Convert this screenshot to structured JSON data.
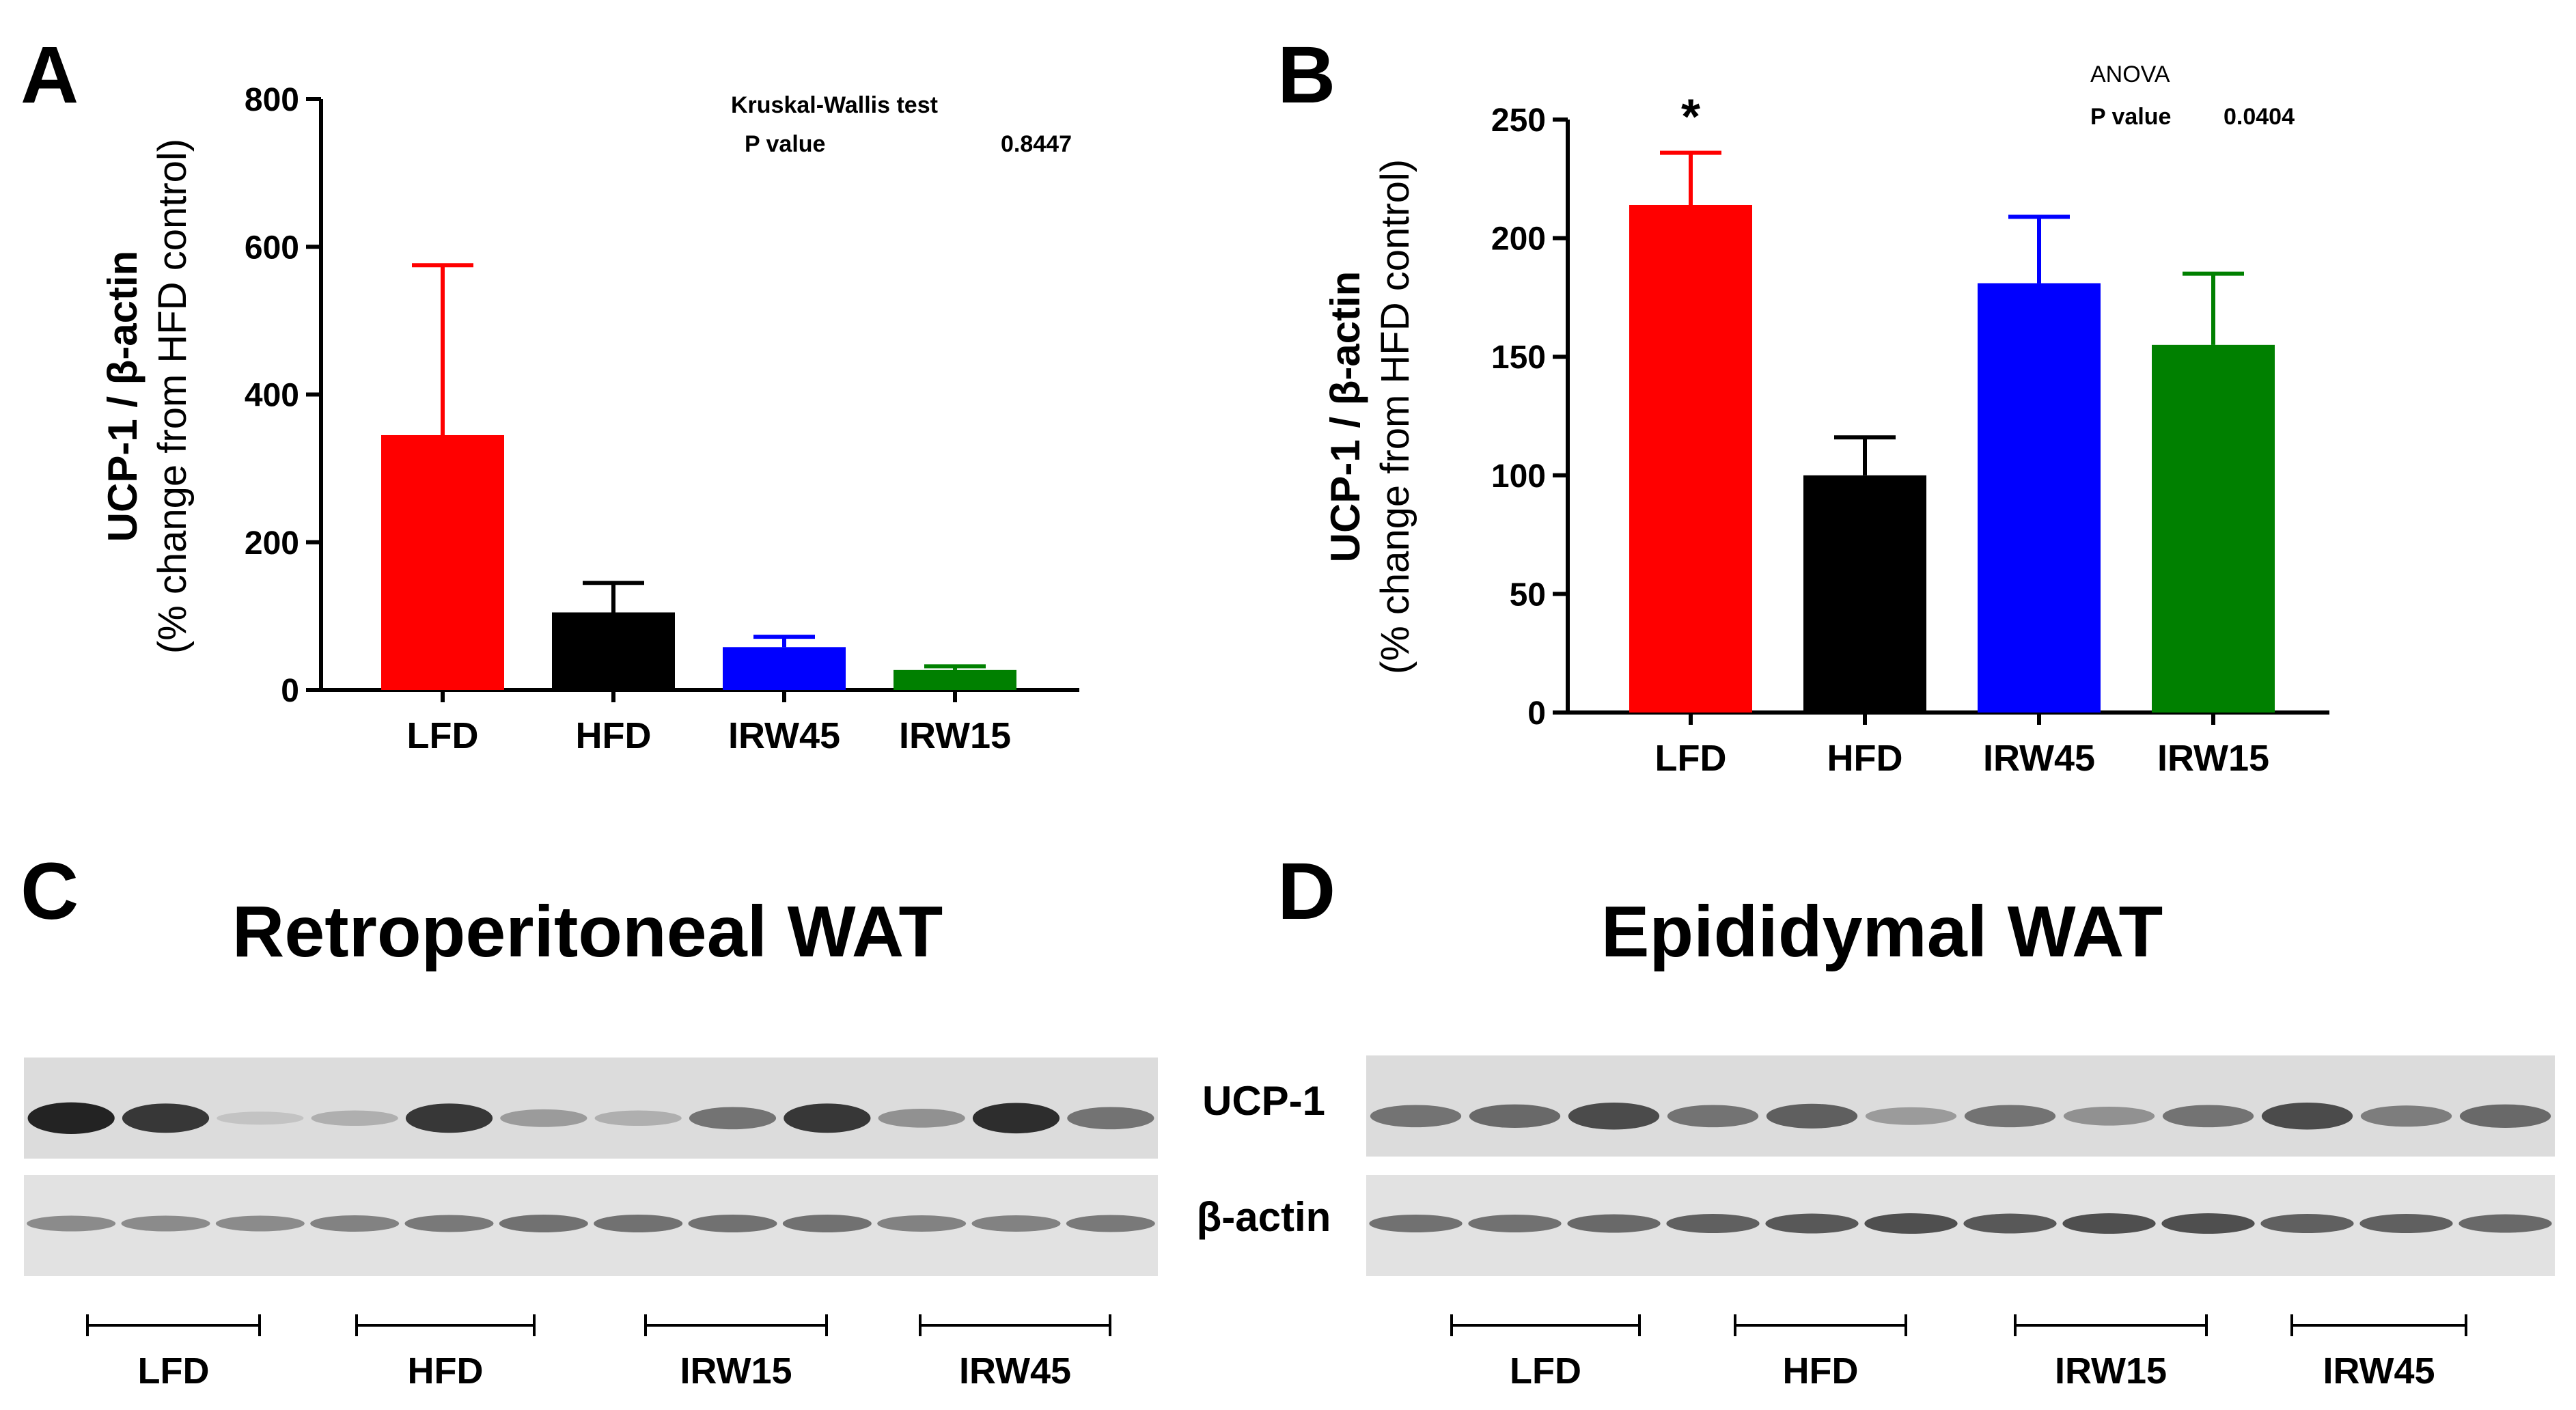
{
  "panel_letters": {
    "a": "A",
    "b": "B",
    "c": "C",
    "d": "D"
  },
  "colors": {
    "lfd": "#ff0000",
    "hfd": "#000000",
    "irw45": "#0000ff",
    "irw15": "#008000"
  },
  "chart_data": [
    {
      "panel": "A",
      "type": "bar",
      "categories": [
        "LFD",
        "HFD",
        "IRW45",
        "IRW15"
      ],
      "values": [
        345,
        105,
        58,
        27
      ],
      "error_upper": [
        575,
        145,
        72,
        32
      ],
      "colors": [
        "#ff0000",
        "#000000",
        "#0000ff",
        "#008000"
      ],
      "ylabel_main": "UCP-1 / β-actin",
      "ylabel_sub": "(% change from HFD control)",
      "ylim": [
        0,
        800
      ],
      "yticks": [
        0,
        200,
        400,
        600,
        800
      ],
      "stat_test": "Kruskal-Wallis test",
      "p_label": "P value",
      "p_value": "0.8447"
    },
    {
      "panel": "B",
      "type": "bar",
      "categories": [
        "LFD",
        "HFD",
        "IRW45",
        "IRW15"
      ],
      "values": [
        214,
        100,
        181,
        155
      ],
      "error_upper": [
        236,
        116,
        209,
        185
      ],
      "colors": [
        "#ff0000",
        "#000000",
        "#0000ff",
        "#008000"
      ],
      "ylabel_main": "UCP-1 / β-actin",
      "ylabel_sub": "(% change from HFD control)",
      "ylim": [
        0,
        250
      ],
      "yticks": [
        0,
        50,
        100,
        150,
        200,
        250
      ],
      "stat_test": "ANOVA",
      "p_label": "P value",
      "p_value": "0.0404",
      "significance": [
        "*",
        "",
        "",
        ""
      ]
    }
  ],
  "blots": {
    "c_title": "Retroperitoneal WAT",
    "d_title": "Epididymal WAT",
    "band_label_top": "UCP-1",
    "band_label_bottom": "β-actin",
    "c_groups": [
      "LFD",
      "HFD",
      "IRW15",
      "IRW45"
    ],
    "d_groups": [
      "LFD",
      "HFD",
      "IRW15",
      "IRW45"
    ],
    "c_ucp_intensity": [
      0.95,
      0.85,
      0.15,
      0.25,
      0.85,
      0.35,
      0.25,
      0.55,
      0.85,
      0.4,
      0.9,
      0.55
    ],
    "c_actin_intensity": [
      0.45,
      0.45,
      0.45,
      0.5,
      0.55,
      0.6,
      0.6,
      0.6,
      0.6,
      0.5,
      0.5,
      0.55
    ],
    "d_ucp_intensity": [
      0.55,
      0.6,
      0.75,
      0.55,
      0.65,
      0.35,
      0.55,
      0.4,
      0.55,
      0.75,
      0.5,
      0.6
    ],
    "d_actin_intensity": [
      0.6,
      0.6,
      0.65,
      0.7,
      0.75,
      0.8,
      0.75,
      0.8,
      0.8,
      0.7,
      0.7,
      0.65
    ]
  }
}
